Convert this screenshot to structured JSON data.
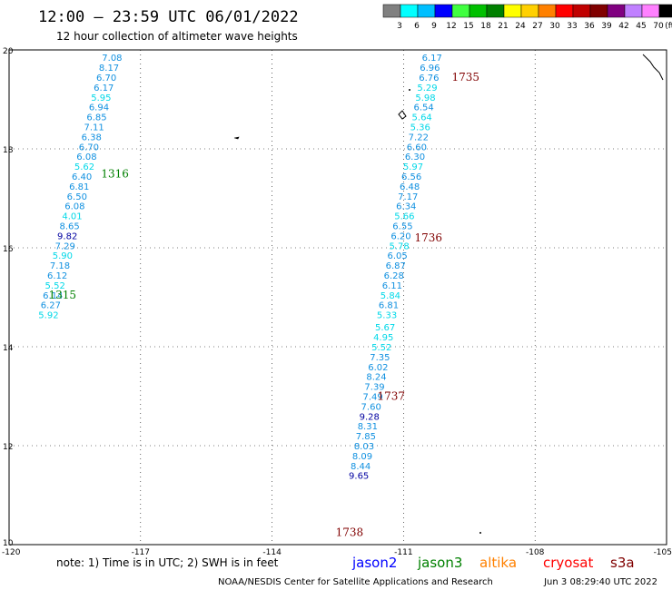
{
  "header": {
    "title": "12:00 – 23:59 UTC 06/01/2022",
    "subtitle": "12 hour collection of altimeter wave heights"
  },
  "legend": {
    "unit": "(ft)",
    "bins": [
      {
        "label": "3",
        "color": "#808080"
      },
      {
        "label": "6",
        "color": "#00ffff"
      },
      {
        "label": "9",
        "color": "#00bfff"
      },
      {
        "label": "12",
        "color": "#0000ff"
      },
      {
        "label": "15",
        "color": "#40ff40"
      },
      {
        "label": "18",
        "color": "#00c000"
      },
      {
        "label": "21",
        "color": "#008000"
      },
      {
        "label": "24",
        "color": "#ffff00"
      },
      {
        "label": "27",
        "color": "#ffd000"
      },
      {
        "label": "30",
        "color": "#ff8000"
      },
      {
        "label": "33",
        "color": "#ff0000"
      },
      {
        "label": "36",
        "color": "#c00000"
      },
      {
        "label": "39",
        "color": "#800000"
      },
      {
        "label": "42",
        "color": "#800080"
      },
      {
        "label": "45",
        "color": "#c080ff"
      },
      {
        "label": "70",
        "color": "#ff80ff"
      },
      {
        "label": "",
        "color": "#000000"
      }
    ]
  },
  "footer": {
    "note": "note:  1) Time is in UTC; 2) SWH is in feet",
    "satellites": [
      {
        "name": "jason2",
        "color": "#0000ff"
      },
      {
        "name": "jason3",
        "color": "#008000"
      },
      {
        "name": "altika",
        "color": "#ff8000"
      },
      {
        "name": "cryosat",
        "color": "#ff0000"
      },
      {
        "name": "s3a",
        "color": "#800000"
      }
    ],
    "credit": "NOAA/NESDIS Center for Satellite Applications and Research",
    "generated": "Jun  3 08:29:40 UTC 2022"
  },
  "colors": {
    "cyan_value": "#00d8e8",
    "medium_value": "#1090e0",
    "high_value": "#0000a0",
    "jason3_label": "#008000",
    "s3a_label": "#800000"
  },
  "chart_data": {
    "type": "scatter",
    "title": "12:00 – 23:59 UTC 06/01/2022",
    "subtitle": "12 hour collection of altimeter wave heights",
    "xlim": [
      -120,
      -105
    ],
    "ylim": [
      10,
      20
    ],
    "xticks": [
      "-120",
      "-117",
      "-114",
      "-111",
      "-108",
      "-105"
    ],
    "yticks": [
      "10",
      "12",
      "14",
      "16",
      "18",
      "20"
    ],
    "grid": "dotted",
    "tracks": [
      {
        "satellite": "jason3",
        "pass_labels": [
          {
            "text": "1316",
            "lon": -117.9,
            "lat": 17.5
          },
          {
            "text": "1315",
            "lon": -119.1,
            "lat": 15.05
          }
        ],
        "points": [
          {
            "lon": -117.65,
            "lat": 19.85,
            "v": "7.08"
          },
          {
            "lon": -117.72,
            "lat": 19.65,
            "v": "8.17"
          },
          {
            "lon": -117.78,
            "lat": 19.45,
            "v": "6.70"
          },
          {
            "lon": -117.84,
            "lat": 19.25,
            "v": "6.17"
          },
          {
            "lon": -117.9,
            "lat": 19.05,
            "v": "5.95"
          },
          {
            "lon": -117.95,
            "lat": 18.85,
            "v": "6.94"
          },
          {
            "lon": -118.0,
            "lat": 18.65,
            "v": "6.85"
          },
          {
            "lon": -118.06,
            "lat": 18.45,
            "v": "7.11"
          },
          {
            "lon": -118.12,
            "lat": 18.25,
            "v": "6.38"
          },
          {
            "lon": -118.18,
            "lat": 18.05,
            "v": "6.70"
          },
          {
            "lon": -118.23,
            "lat": 17.85,
            "v": "6.08"
          },
          {
            "lon": -118.28,
            "lat": 17.65,
            "v": "5.62"
          },
          {
            "lon": -118.34,
            "lat": 17.45,
            "v": "6.40"
          },
          {
            "lon": -118.4,
            "lat": 17.25,
            "v": "6.81"
          },
          {
            "lon": -118.45,
            "lat": 17.05,
            "v": "6.50"
          },
          {
            "lon": -118.5,
            "lat": 16.85,
            "v": "6.08"
          },
          {
            "lon": -118.56,
            "lat": 16.65,
            "v": "4.01"
          },
          {
            "lon": -118.62,
            "lat": 16.45,
            "v": "8.65"
          },
          {
            "lon": -118.67,
            "lat": 16.25,
            "v": "9.82"
          },
          {
            "lon": -118.72,
            "lat": 16.05,
            "v": "7.29"
          },
          {
            "lon": -118.78,
            "lat": 15.85,
            "v": "5.90"
          },
          {
            "lon": -118.84,
            "lat": 15.65,
            "v": "7.18"
          },
          {
            "lon": -118.9,
            "lat": 15.45,
            "v": "6.12"
          },
          {
            "lon": -118.95,
            "lat": 15.25,
            "v": "5.52"
          },
          {
            "lon": -119.0,
            "lat": 15.05,
            "v": "6.14"
          },
          {
            "lon": -119.05,
            "lat": 14.85,
            "v": "6.27"
          },
          {
            "lon": -119.1,
            "lat": 14.65,
            "v": "5.92"
          }
        ]
      },
      {
        "satellite": "s3a",
        "pass_labels": [
          {
            "text": "1735",
            "lon": -109.9,
            "lat": 19.45
          },
          {
            "text": "1736",
            "lon": -110.75,
            "lat": 16.2
          },
          {
            "text": "1737",
            "lon": -111.6,
            "lat": 13.0
          },
          {
            "text": "1738",
            "lon": -112.55,
            "lat": 10.25
          }
        ],
        "points": [
          {
            "lon": -110.35,
            "lat": 19.85,
            "v": "6.17"
          },
          {
            "lon": -110.4,
            "lat": 19.65,
            "v": "6.96"
          },
          {
            "lon": -110.42,
            "lat": 19.45,
            "v": "6.76"
          },
          {
            "lon": -110.46,
            "lat": 19.25,
            "v": "5.29"
          },
          {
            "lon": -110.5,
            "lat": 19.05,
            "v": "5.98"
          },
          {
            "lon": -110.54,
            "lat": 18.85,
            "v": "6.54"
          },
          {
            "lon": -110.58,
            "lat": 18.65,
            "v": "5.64"
          },
          {
            "lon": -110.62,
            "lat": 18.45,
            "v": "5.36"
          },
          {
            "lon": -110.66,
            "lat": 18.25,
            "v": "7.22"
          },
          {
            "lon": -110.7,
            "lat": 18.05,
            "v": "6.60"
          },
          {
            "lon": -110.74,
            "lat": 17.85,
            "v": "6.30"
          },
          {
            "lon": -110.78,
            "lat": 17.65,
            "v": "5.97"
          },
          {
            "lon": -110.82,
            "lat": 17.45,
            "v": "6.56"
          },
          {
            "lon": -110.86,
            "lat": 17.25,
            "v": "6.48"
          },
          {
            "lon": -110.9,
            "lat": 17.05,
            "v": "7.17"
          },
          {
            "lon": -110.94,
            "lat": 16.85,
            "v": "6.34"
          },
          {
            "lon": -110.98,
            "lat": 16.65,
            "v": "5.66"
          },
          {
            "lon": -111.02,
            "lat": 16.45,
            "v": "6.55"
          },
          {
            "lon": -111.06,
            "lat": 16.25,
            "v": "6.20"
          },
          {
            "lon": -111.1,
            "lat": 16.05,
            "v": "5.78"
          },
          {
            "lon": -111.14,
            "lat": 15.85,
            "v": "6.05"
          },
          {
            "lon": -111.18,
            "lat": 15.65,
            "v": "6.87"
          },
          {
            "lon": -111.22,
            "lat": 15.45,
            "v": "6.28"
          },
          {
            "lon": -111.26,
            "lat": 15.25,
            "v": "6.11"
          },
          {
            "lon": -111.3,
            "lat": 15.05,
            "v": "5.84"
          },
          {
            "lon": -111.34,
            "lat": 14.85,
            "v": "6.81"
          },
          {
            "lon": -111.38,
            "lat": 14.65,
            "v": "5.33"
          },
          {
            "lon": -111.42,
            "lat": 14.4,
            "v": "5.67"
          },
          {
            "lon": -111.46,
            "lat": 14.2,
            "v": "4.95"
          },
          {
            "lon": -111.5,
            "lat": 14.0,
            "v": "5.52"
          },
          {
            "lon": -111.54,
            "lat": 13.8,
            "v": "7.35"
          },
          {
            "lon": -111.58,
            "lat": 13.6,
            "v": "6.02"
          },
          {
            "lon": -111.62,
            "lat": 13.4,
            "v": "8.24"
          },
          {
            "lon": -111.66,
            "lat": 13.2,
            "v": "7.39"
          },
          {
            "lon": -111.7,
            "lat": 13.0,
            "v": "7.49"
          },
          {
            "lon": -111.74,
            "lat": 12.8,
            "v": "7.60"
          },
          {
            "lon": -111.78,
            "lat": 12.6,
            "v": "9.28"
          },
          {
            "lon": -111.82,
            "lat": 12.4,
            "v": "8.31"
          },
          {
            "lon": -111.86,
            "lat": 12.2,
            "v": "7.85"
          },
          {
            "lon": -111.9,
            "lat": 12.0,
            "v": "8.03"
          },
          {
            "lon": -111.94,
            "lat": 11.8,
            "v": "8.09"
          },
          {
            "lon": -111.98,
            "lat": 11.6,
            "v": "8.44"
          },
          {
            "lon": -112.02,
            "lat": 11.4,
            "v": "9.65"
          }
        ]
      }
    ]
  }
}
